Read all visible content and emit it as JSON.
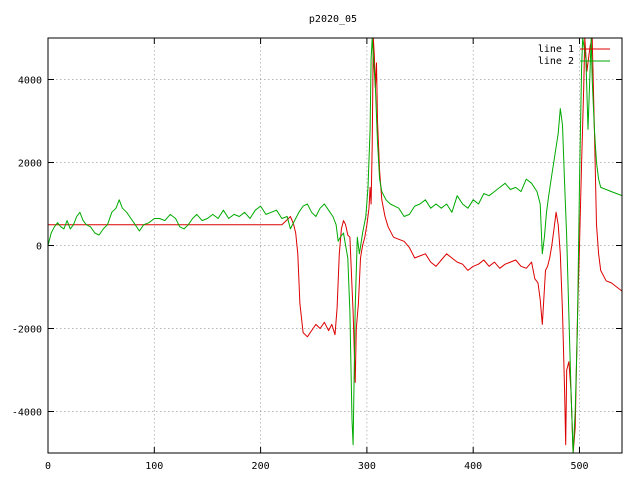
{
  "chart_data": {
    "type": "line",
    "title": "p2020_05",
    "xlabel": "",
    "ylabel": "",
    "xlim": [
      0,
      540
    ],
    "ylim": [
      -5000,
      5000
    ],
    "x_ticks": [
      0,
      100,
      200,
      300,
      400,
      500
    ],
    "y_ticks": [
      -4000,
      -2000,
      0,
      2000,
      4000
    ],
    "grid": true,
    "legend_position": "top-right",
    "series": [
      {
        "name": "line 1",
        "color": "#dd0000",
        "points": [
          [
            0,
            500
          ],
          [
            50,
            500
          ],
          [
            100,
            500
          ],
          [
            150,
            500
          ],
          [
            200,
            500
          ],
          [
            220,
            500
          ],
          [
            225,
            620
          ],
          [
            228,
            700
          ],
          [
            231,
            520
          ],
          [
            233,
            300
          ],
          [
            235,
            -200
          ],
          [
            237,
            -1400
          ],
          [
            240,
            -2100
          ],
          [
            244,
            -2200
          ],
          [
            248,
            -2050
          ],
          [
            252,
            -1900
          ],
          [
            256,
            -2000
          ],
          [
            260,
            -1850
          ],
          [
            264,
            -2050
          ],
          [
            267,
            -1900
          ],
          [
            270,
            -2150
          ],
          [
            272,
            -1500
          ],
          [
            274,
            -200
          ],
          [
            276,
            400
          ],
          [
            278,
            600
          ],
          [
            280,
            500
          ],
          [
            282,
            250
          ],
          [
            284,
            200
          ],
          [
            286,
            -1000
          ],
          [
            287,
            -1600
          ],
          [
            289,
            -3300
          ],
          [
            290,
            -2000
          ],
          [
            292,
            -1400
          ],
          [
            294,
            -300
          ],
          [
            296,
            0
          ],
          [
            298,
            200
          ],
          [
            300,
            500
          ],
          [
            302,
            900
          ],
          [
            303,
            1400
          ],
          [
            304,
            1000
          ],
          [
            305,
            2400
          ],
          [
            306,
            5000
          ],
          [
            307,
            4600
          ],
          [
            308,
            3800
          ],
          [
            309,
            4400
          ],
          [
            310,
            3000
          ],
          [
            312,
            1800
          ],
          [
            314,
            1100
          ],
          [
            317,
            700
          ],
          [
            320,
            450
          ],
          [
            325,
            200
          ],
          [
            330,
            150
          ],
          [
            335,
            100
          ],
          [
            340,
            -50
          ],
          [
            345,
            -300
          ],
          [
            350,
            -250
          ],
          [
            355,
            -200
          ],
          [
            360,
            -400
          ],
          [
            365,
            -500
          ],
          [
            370,
            -350
          ],
          [
            375,
            -200
          ],
          [
            380,
            -300
          ],
          [
            385,
            -400
          ],
          [
            390,
            -450
          ],
          [
            395,
            -600
          ],
          [
            400,
            -500
          ],
          [
            405,
            -450
          ],
          [
            410,
            -350
          ],
          [
            415,
            -500
          ],
          [
            420,
            -400
          ],
          [
            425,
            -550
          ],
          [
            430,
            -450
          ],
          [
            435,
            -400
          ],
          [
            440,
            -350
          ],
          [
            445,
            -500
          ],
          [
            450,
            -550
          ],
          [
            455,
            -400
          ],
          [
            458,
            -800
          ],
          [
            461,
            -900
          ],
          [
            463,
            -1300
          ],
          [
            465,
            -1900
          ],
          [
            466,
            -1500
          ],
          [
            468,
            -600
          ],
          [
            470,
            -500
          ],
          [
            472,
            -300
          ],
          [
            474,
            0
          ],
          [
            476,
            400
          ],
          [
            478,
            800
          ],
          [
            480,
            500
          ],
          [
            482,
            -200
          ],
          [
            484,
            -1600
          ],
          [
            486,
            -3500
          ],
          [
            487,
            -4800
          ],
          [
            488,
            -3000
          ],
          [
            490,
            -2800
          ],
          [
            492,
            -3500
          ],
          [
            494,
            -5000
          ],
          [
            496,
            -4400
          ],
          [
            498,
            -1800
          ],
          [
            500,
            0
          ],
          [
            502,
            2000
          ],
          [
            504,
            3800
          ],
          [
            505,
            5000
          ],
          [
            507,
            4200
          ],
          [
            510,
            4800
          ],
          [
            512,
            5000
          ],
          [
            514,
            2800
          ],
          [
            516,
            500
          ],
          [
            518,
            -200
          ],
          [
            520,
            -600
          ],
          [
            525,
            -850
          ],
          [
            530,
            -900
          ],
          [
            535,
            -1000
          ],
          [
            540,
            -1100
          ]
        ]
      },
      {
        "name": "line 2",
        "color": "#00aa00",
        "points": [
          [
            0,
            0
          ],
          [
            3,
            300
          ],
          [
            6,
            450
          ],
          [
            9,
            550
          ],
          [
            12,
            450
          ],
          [
            15,
            400
          ],
          [
            18,
            600
          ],
          [
            21,
            400
          ],
          [
            24,
            500
          ],
          [
            27,
            700
          ],
          [
            30,
            800
          ],
          [
            33,
            600
          ],
          [
            36,
            500
          ],
          [
            40,
            450
          ],
          [
            44,
            300
          ],
          [
            48,
            250
          ],
          [
            52,
            400
          ],
          [
            56,
            500
          ],
          [
            60,
            800
          ],
          [
            64,
            900
          ],
          [
            67,
            1100
          ],
          [
            70,
            900
          ],
          [
            74,
            800
          ],
          [
            78,
            650
          ],
          [
            82,
            500
          ],
          [
            86,
            350
          ],
          [
            90,
            500
          ],
          [
            95,
            550
          ],
          [
            100,
            650
          ],
          [
            105,
            650
          ],
          [
            110,
            600
          ],
          [
            115,
            750
          ],
          [
            120,
            650
          ],
          [
            124,
            450
          ],
          [
            128,
            400
          ],
          [
            132,
            500
          ],
          [
            136,
            650
          ],
          [
            140,
            750
          ],
          [
            145,
            600
          ],
          [
            150,
            650
          ],
          [
            155,
            750
          ],
          [
            160,
            650
          ],
          [
            165,
            850
          ],
          [
            170,
            650
          ],
          [
            175,
            750
          ],
          [
            180,
            700
          ],
          [
            185,
            800
          ],
          [
            190,
            650
          ],
          [
            195,
            850
          ],
          [
            200,
            950
          ],
          [
            205,
            750
          ],
          [
            210,
            800
          ],
          [
            215,
            850
          ],
          [
            220,
            650
          ],
          [
            225,
            700
          ],
          [
            228,
            400
          ],
          [
            232,
            600
          ],
          [
            236,
            800
          ],
          [
            240,
            950
          ],
          [
            244,
            1000
          ],
          [
            248,
            800
          ],
          [
            252,
            700
          ],
          [
            256,
            900
          ],
          [
            260,
            1000
          ],
          [
            264,
            850
          ],
          [
            268,
            700
          ],
          [
            271,
            500
          ],
          [
            273,
            100
          ],
          [
            275,
            200
          ],
          [
            278,
            300
          ],
          [
            280,
            0
          ],
          [
            282,
            -300
          ],
          [
            284,
            -1600
          ],
          [
            286,
            -4200
          ],
          [
            287,
            -4800
          ],
          [
            289,
            -1500
          ],
          [
            291,
            200
          ],
          [
            293,
            -200
          ],
          [
            296,
            300
          ],
          [
            299,
            700
          ],
          [
            301,
            1400
          ],
          [
            303,
            2800
          ],
          [
            304,
            4500
          ],
          [
            305,
            5000
          ],
          [
            308,
            3800
          ],
          [
            310,
            2500
          ],
          [
            312,
            1600
          ],
          [
            314,
            1300
          ],
          [
            318,
            1100
          ],
          [
            322,
            1000
          ],
          [
            326,
            950
          ],
          [
            330,
            900
          ],
          [
            335,
            700
          ],
          [
            340,
            750
          ],
          [
            345,
            950
          ],
          [
            350,
            1000
          ],
          [
            355,
            1100
          ],
          [
            360,
            900
          ],
          [
            365,
            1000
          ],
          [
            370,
            900
          ],
          [
            375,
            1000
          ],
          [
            380,
            800
          ],
          [
            385,
            1200
          ],
          [
            390,
            1000
          ],
          [
            395,
            900
          ],
          [
            400,
            1100
          ],
          [
            405,
            1000
          ],
          [
            410,
            1250
          ],
          [
            415,
            1200
          ],
          [
            420,
            1300
          ],
          [
            425,
            1400
          ],
          [
            430,
            1500
          ],
          [
            435,
            1350
          ],
          [
            440,
            1400
          ],
          [
            445,
            1300
          ],
          [
            450,
            1600
          ],
          [
            455,
            1500
          ],
          [
            460,
            1300
          ],
          [
            463,
            1000
          ],
          [
            465,
            -200
          ],
          [
            467,
            200
          ],
          [
            469,
            800
          ],
          [
            471,
            1200
          ],
          [
            474,
            1700
          ],
          [
            477,
            2200
          ],
          [
            480,
            2700
          ],
          [
            482,
            3300
          ],
          [
            484,
            2900
          ],
          [
            486,
            1500
          ],
          [
            488,
            200
          ],
          [
            490,
            -1700
          ],
          [
            492,
            -3500
          ],
          [
            494,
            -5000
          ],
          [
            496,
            -4000
          ],
          [
            498,
            -2000
          ],
          [
            500,
            1500
          ],
          [
            502,
            4300
          ],
          [
            503,
            5000
          ],
          [
            506,
            4500
          ],
          [
            508,
            2800
          ],
          [
            511,
            5000
          ],
          [
            512,
            4000
          ],
          [
            514,
            2800
          ],
          [
            516,
            2000
          ],
          [
            518,
            1600
          ],
          [
            520,
            1400
          ],
          [
            525,
            1350
          ],
          [
            530,
            1300
          ],
          [
            535,
            1250
          ],
          [
            540,
            1200
          ]
        ]
      }
    ]
  }
}
